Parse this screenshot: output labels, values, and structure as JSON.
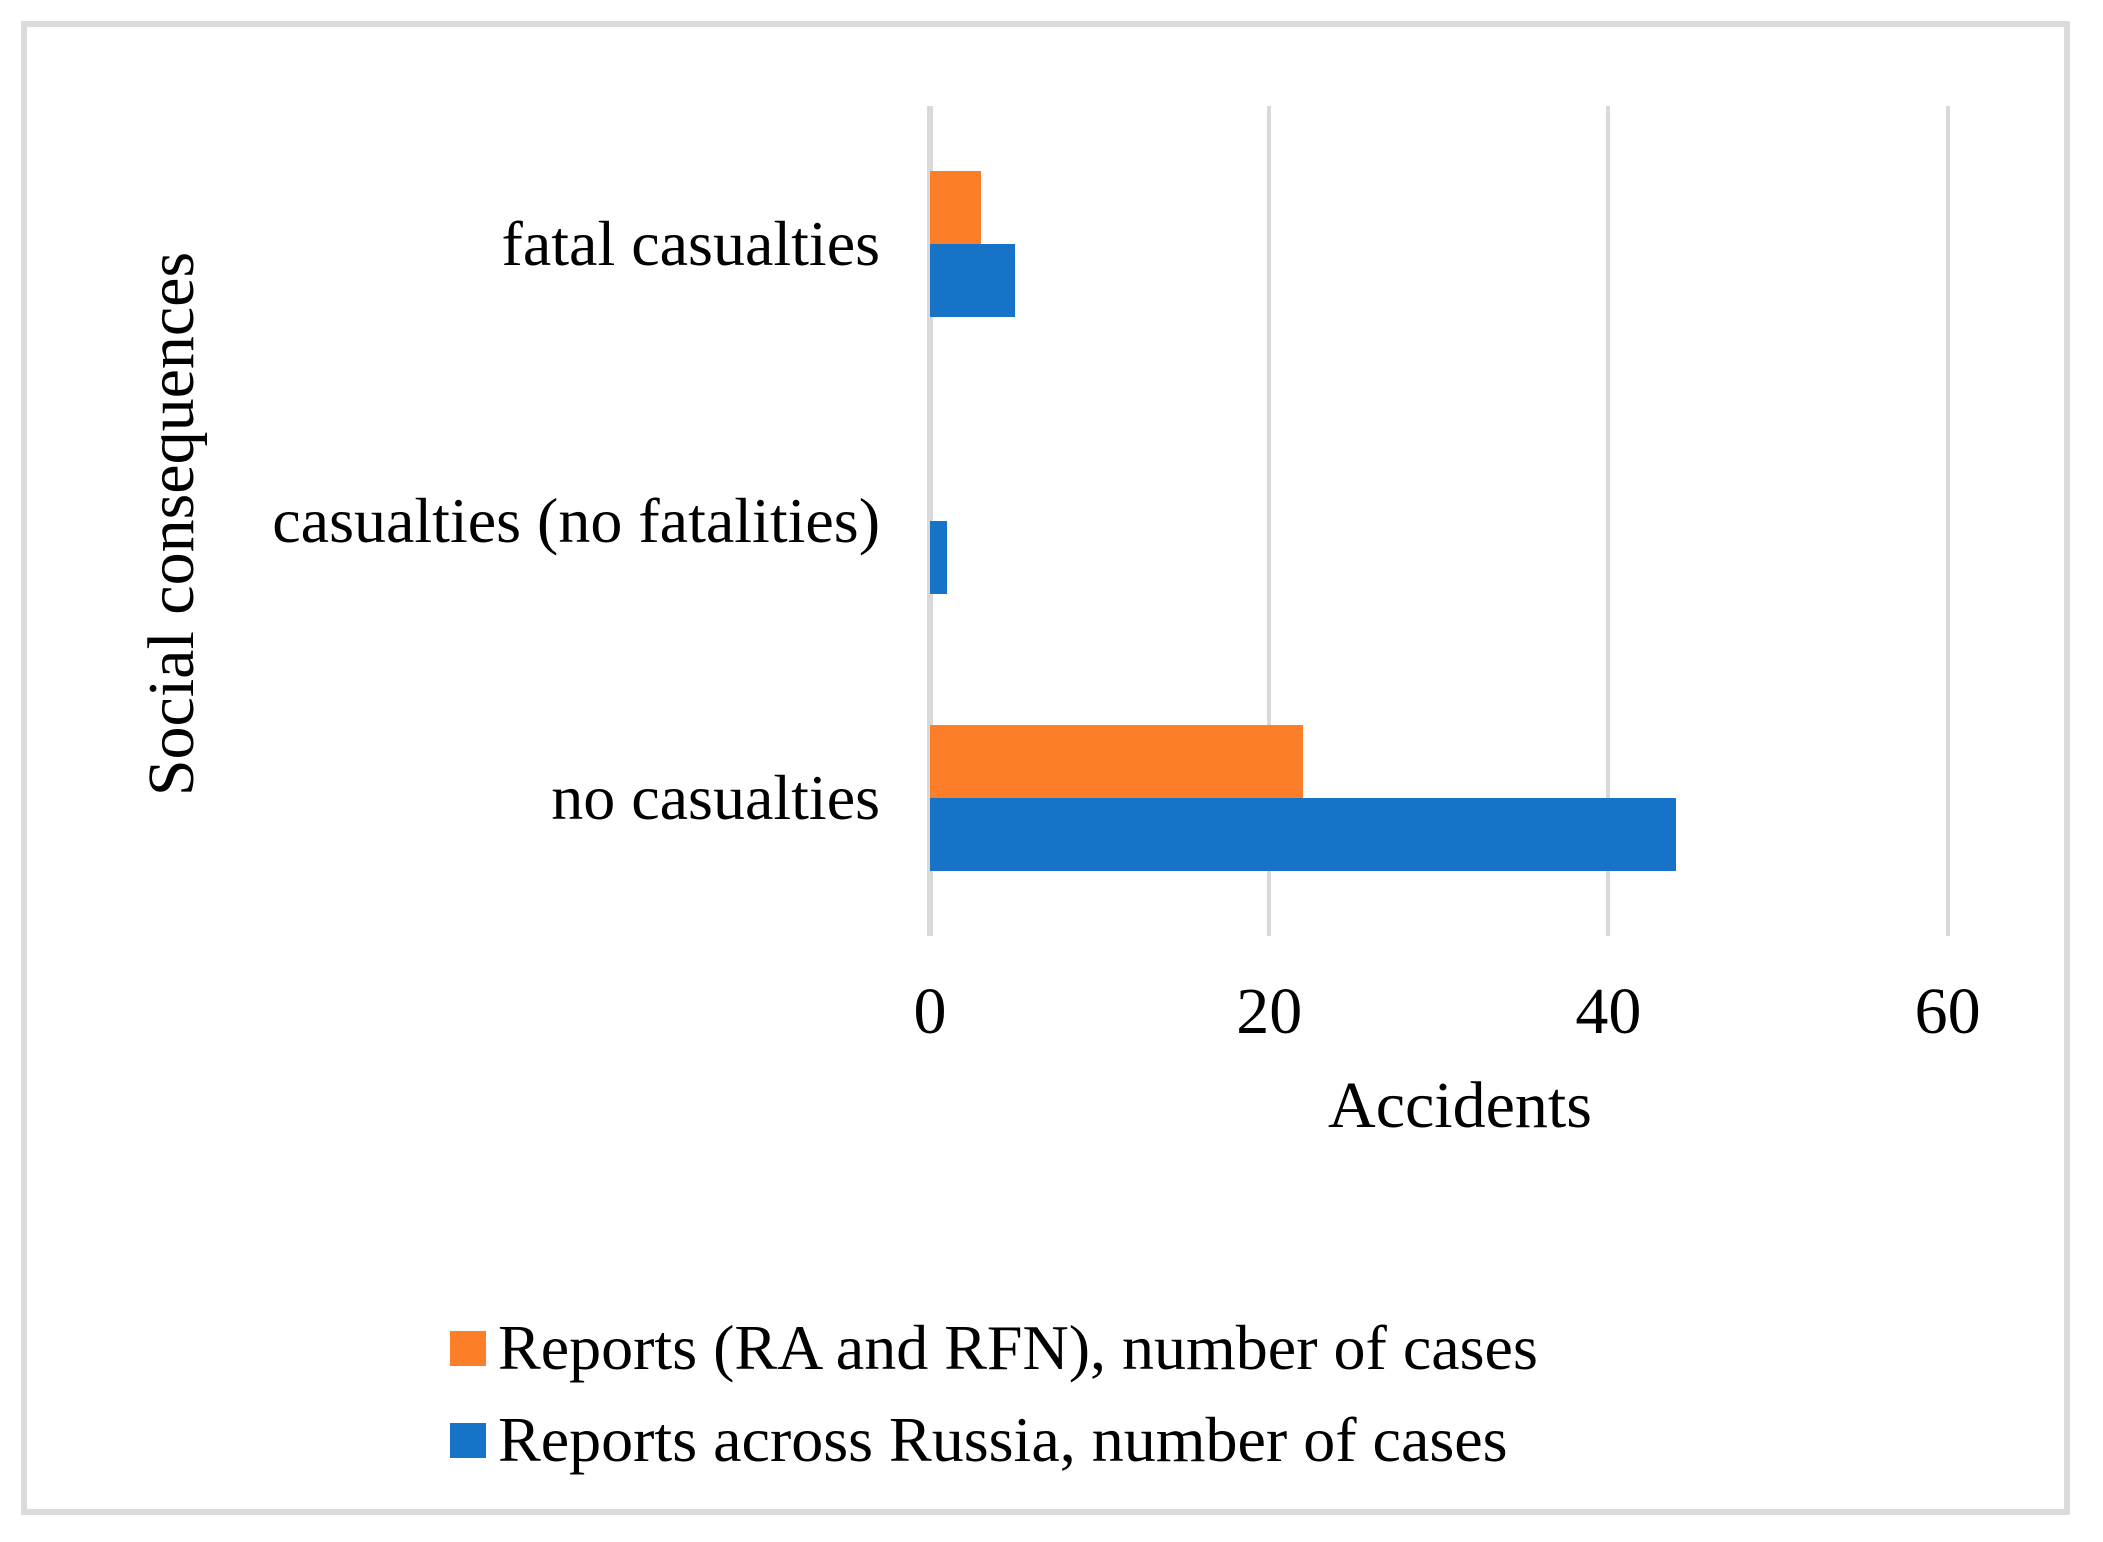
{
  "figure": {
    "background_color": "#FFFFFF",
    "frame_color": "#DBDBDB"
  },
  "chart_data": {
    "type": "bar",
    "orientation": "horizontal",
    "title": "",
    "xlabel": "Accidents",
    "ylabel": "Social consequences",
    "category_order": "top-to-bottom",
    "categories": [
      "fatal casualties",
      "casualties (no fatalities)",
      "no casualties"
    ],
    "series": [
      {
        "name": "Reports (RA and RFN), number of cases",
        "color": "#FC7E28",
        "values": [
          3,
          0,
          22
        ]
      },
      {
        "name": "Reports across Russia, number of cases",
        "color": "#1773C8",
        "values": [
          5,
          1,
          44
        ]
      }
    ],
    "x_ticks": [
      0,
      20,
      40,
      60
    ],
    "xlim": [
      0,
      62.5
    ],
    "grid": "vertical-gridlines-only",
    "gridline_color": "#D9D9D9",
    "legend_position": "bottom-left"
  }
}
